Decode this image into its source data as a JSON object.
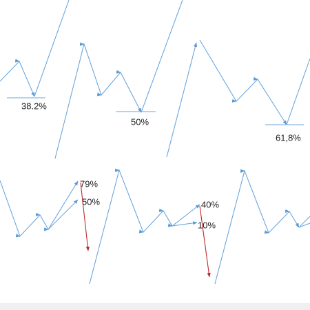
{
  "top_row": {
    "levels": [
      "38.2%",
      "50%",
      "61,8%"
    ]
  },
  "bottom_row": {
    "levels": [
      "79%",
      "50%",
      "40%",
      "10%"
    ]
  }
}
